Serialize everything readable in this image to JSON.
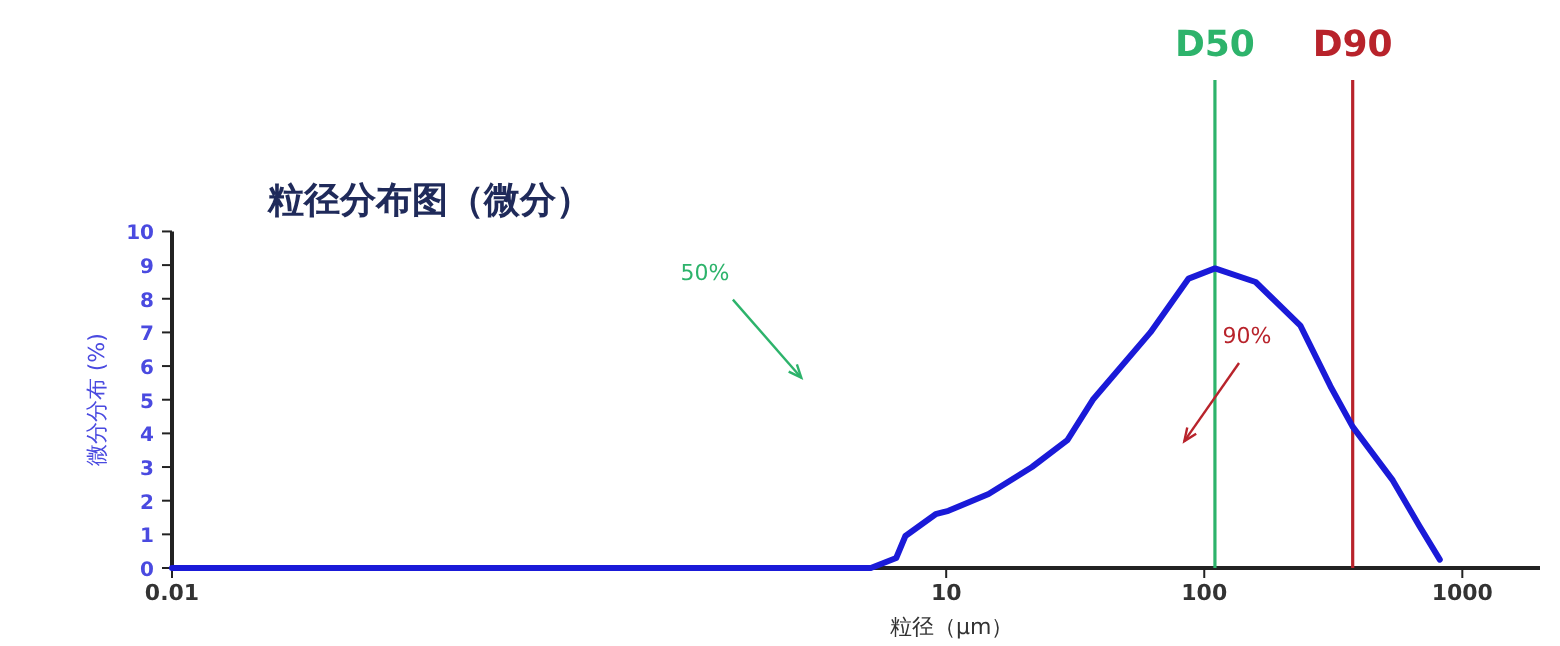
{
  "chart_data": {
    "type": "line",
    "title": "粒径分布图（微分）",
    "xlabel": "粒径（μm）",
    "ylabel": "微分分布 (%)",
    "log": "x",
    "xlim": [
      0.01,
      2000
    ],
    "xticks": [
      {
        "value": 0.01,
        "label": "0.01"
      },
      10,
      100,
      1000
    ],
    "ylim": [
      0,
      14.5
    ],
    "yticks": [
      0,
      1,
      2,
      3,
      4,
      5,
      6,
      7,
      8,
      9,
      10
    ],
    "grid": false,
    "marker": "none",
    "line_style": "solid",
    "series": [
      {
        "color": "#1a1ad8",
        "x": [
          0.01,
          5.1,
          6.4,
          6.95,
          9.1,
          10.2,
          14.6,
          21.5,
          29.5,
          37,
          61.9,
          87,
          110,
          158,
          236,
          308,
          376,
          538,
          682,
          818
        ],
        "values": [
          0,
          0,
          0.3,
          0.95,
          1.6,
          1.7,
          2.2,
          3.0,
          3.8,
          5.0,
          7.0,
          8.6,
          8.9,
          8.5,
          7.2,
          5.4,
          4.2,
          2.6,
          1.25,
          0.25
        ]
      }
    ],
    "ref_lines": [
      {
        "axis": "x",
        "value": 110,
        "label": "D50",
        "color": "#2db36b"
      },
      {
        "axis": "x",
        "value": 376,
        "label": "D90",
        "color": "#b8232b"
      }
    ],
    "annotations": [
      "50%",
      "90%"
    ]
  }
}
